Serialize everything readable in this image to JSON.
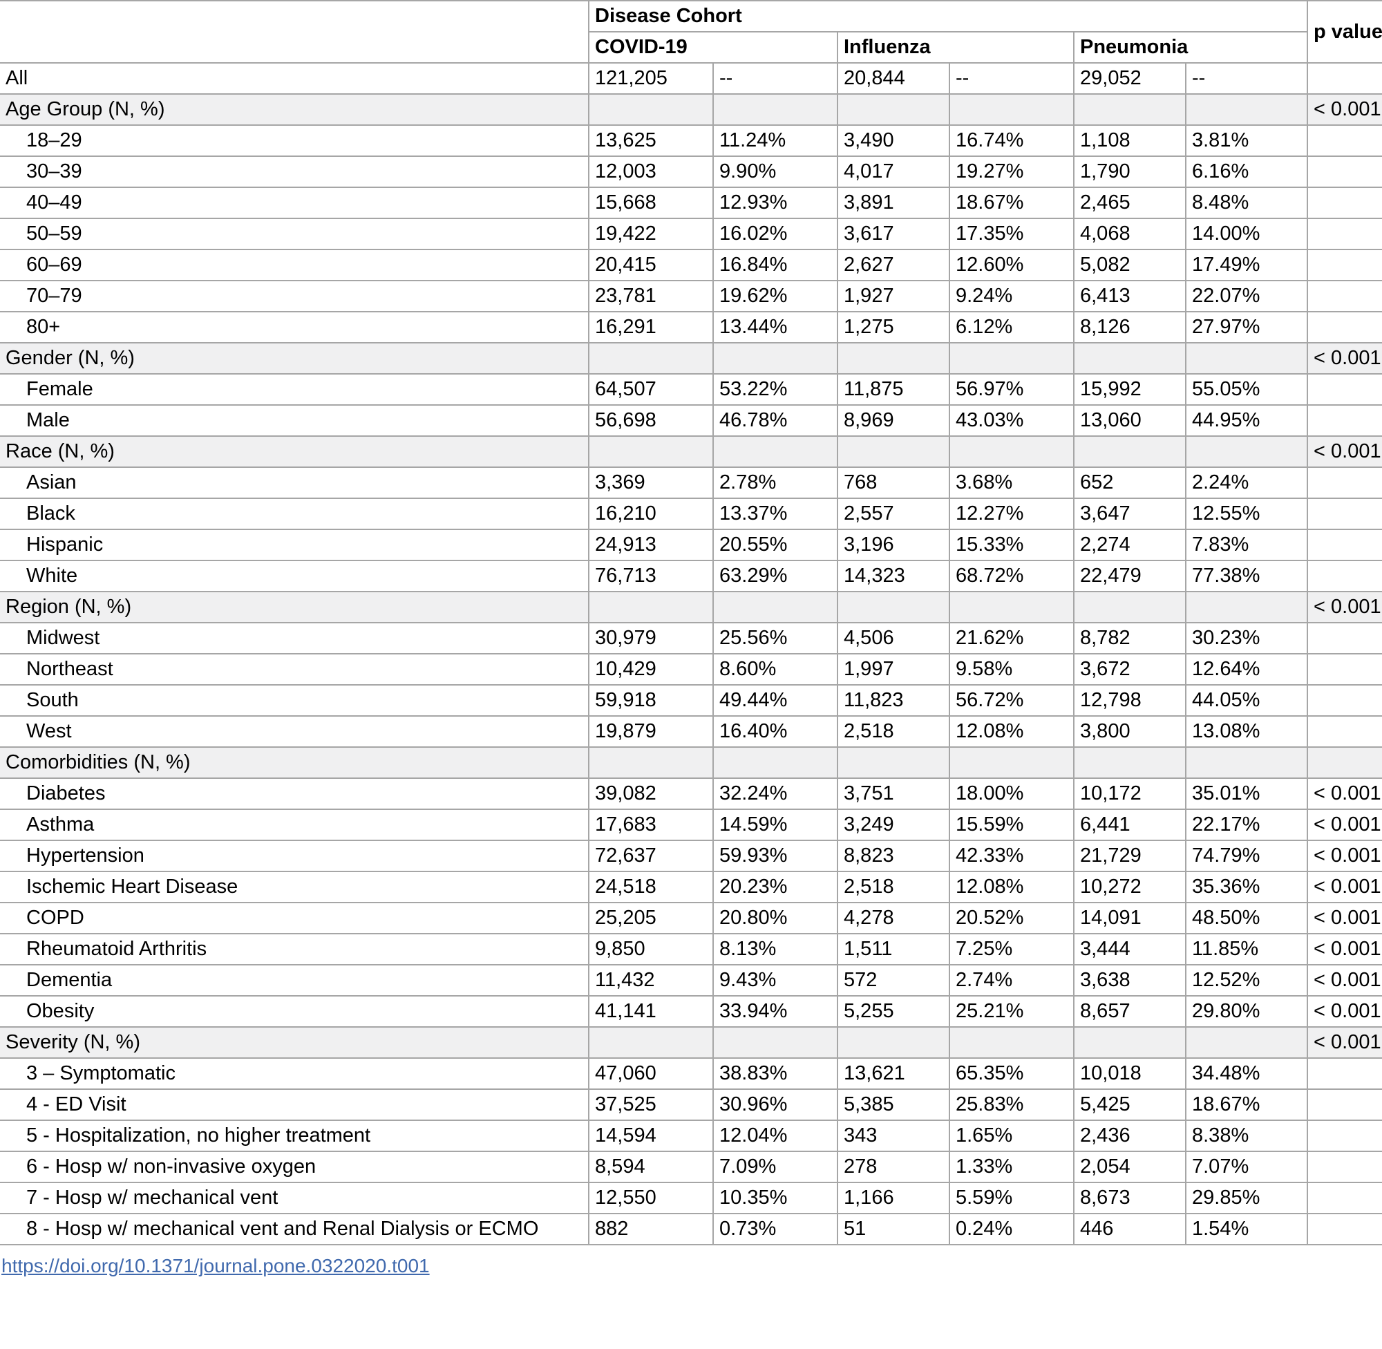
{
  "table": {
    "header": {
      "group_label": "Disease Cohort",
      "p_value_label": "p value",
      "cohorts": [
        "COVID-19",
        "Influenza",
        "Pneumonia"
      ]
    },
    "rows": [
      {
        "type": "data",
        "indent": false,
        "label": "All",
        "cells": [
          "121,205",
          "--",
          "20,844",
          "--",
          "29,052",
          "--"
        ],
        "p": ""
      },
      {
        "type": "section",
        "label": "Age Group (N, %)",
        "p": "< 0.001"
      },
      {
        "type": "data",
        "indent": true,
        "label": "18–29",
        "cells": [
          "13,625",
          "11.24%",
          "3,490",
          "16.74%",
          "1,108",
          "3.81%"
        ],
        "p": ""
      },
      {
        "type": "data",
        "indent": true,
        "label": "30–39",
        "cells": [
          "12,003",
          "9.90%",
          "4,017",
          "19.27%",
          "1,790",
          "6.16%"
        ],
        "p": ""
      },
      {
        "type": "data",
        "indent": true,
        "label": "40–49",
        "cells": [
          "15,668",
          "12.93%",
          "3,891",
          "18.67%",
          "2,465",
          "8.48%"
        ],
        "p": ""
      },
      {
        "type": "data",
        "indent": true,
        "label": "50–59",
        "cells": [
          "19,422",
          "16.02%",
          "3,617",
          "17.35%",
          "4,068",
          "14.00%"
        ],
        "p": ""
      },
      {
        "type": "data",
        "indent": true,
        "label": "60–69",
        "cells": [
          "20,415",
          "16.84%",
          "2,627",
          "12.60%",
          "5,082",
          "17.49%"
        ],
        "p": ""
      },
      {
        "type": "data",
        "indent": true,
        "label": "70–79",
        "cells": [
          "23,781",
          "19.62%",
          "1,927",
          "9.24%",
          "6,413",
          "22.07%"
        ],
        "p": ""
      },
      {
        "type": "data",
        "indent": true,
        "label": "80+",
        "cells": [
          "16,291",
          "13.44%",
          "1,275",
          "6.12%",
          "8,126",
          "27.97%"
        ],
        "p": ""
      },
      {
        "type": "section",
        "label": "Gender (N, %)",
        "p": "< 0.001"
      },
      {
        "type": "data",
        "indent": true,
        "label": "Female",
        "cells": [
          "64,507",
          "53.22%",
          "11,875",
          "56.97%",
          "15,992",
          "55.05%"
        ],
        "p": ""
      },
      {
        "type": "data",
        "indent": true,
        "label": "Male",
        "cells": [
          "56,698",
          "46.78%",
          "8,969",
          "43.03%",
          "13,060",
          "44.95%"
        ],
        "p": ""
      },
      {
        "type": "section",
        "label": "Race (N, %)",
        "p": "< 0.001"
      },
      {
        "type": "data",
        "indent": true,
        "label": "Asian",
        "cells": [
          "3,369",
          "2.78%",
          "768",
          "3.68%",
          "652",
          "2.24%"
        ],
        "p": ""
      },
      {
        "type": "data",
        "indent": true,
        "label": "Black",
        "cells": [
          "16,210",
          "13.37%",
          "2,557",
          "12.27%",
          "3,647",
          "12.55%"
        ],
        "p": ""
      },
      {
        "type": "data",
        "indent": true,
        "label": "Hispanic",
        "cells": [
          "24,913",
          "20.55%",
          "3,196",
          "15.33%",
          "2,274",
          "7.83%"
        ],
        "p": ""
      },
      {
        "type": "data",
        "indent": true,
        "label": "White",
        "cells": [
          "76,713",
          "63.29%",
          "14,323",
          "68.72%",
          "22,479",
          "77.38%"
        ],
        "p": ""
      },
      {
        "type": "section",
        "label": "Region (N, %)",
        "p": "< 0.001"
      },
      {
        "type": "data",
        "indent": true,
        "label": "Midwest",
        "cells": [
          "30,979",
          "25.56%",
          "4,506",
          "21.62%",
          "8,782",
          "30.23%"
        ],
        "p": ""
      },
      {
        "type": "data",
        "indent": true,
        "label": "Northeast",
        "cells": [
          "10,429",
          "8.60%",
          "1,997",
          "9.58%",
          "3,672",
          "12.64%"
        ],
        "p": ""
      },
      {
        "type": "data",
        "indent": true,
        "label": "South",
        "cells": [
          "59,918",
          "49.44%",
          "11,823",
          "56.72%",
          "12,798",
          "44.05%"
        ],
        "p": ""
      },
      {
        "type": "data",
        "indent": true,
        "label": "West",
        "cells": [
          "19,879",
          "16.40%",
          "2,518",
          "12.08%",
          "3,800",
          "13.08%"
        ],
        "p": ""
      },
      {
        "type": "section",
        "label": "Comorbidities (N, %)",
        "p": ""
      },
      {
        "type": "data",
        "indent": true,
        "label": "Diabetes",
        "cells": [
          "39,082",
          "32.24%",
          "3,751",
          "18.00%",
          "10,172",
          "35.01%"
        ],
        "p": "< 0.001"
      },
      {
        "type": "data",
        "indent": true,
        "label": "Asthma",
        "cells": [
          "17,683",
          "14.59%",
          "3,249",
          "15.59%",
          "6,441",
          "22.17%"
        ],
        "p": "< 0.001"
      },
      {
        "type": "data",
        "indent": true,
        "label": "Hypertension",
        "cells": [
          "72,637",
          "59.93%",
          "8,823",
          "42.33%",
          "21,729",
          "74.79%"
        ],
        "p": "< 0.001"
      },
      {
        "type": "data",
        "indent": true,
        "label": "Ischemic Heart Disease",
        "cells": [
          "24,518",
          "20.23%",
          "2,518",
          "12.08%",
          "10,272",
          "35.36%"
        ],
        "p": "< 0.001"
      },
      {
        "type": "data",
        "indent": true,
        "label": "COPD",
        "cells": [
          "25,205",
          "20.80%",
          "4,278",
          "20.52%",
          "14,091",
          "48.50%"
        ],
        "p": "< 0.001"
      },
      {
        "type": "data",
        "indent": true,
        "label": "Rheumatoid Arthritis",
        "cells": [
          "9,850",
          "8.13%",
          "1,511",
          "7.25%",
          "3,444",
          "11.85%"
        ],
        "p": "< 0.001"
      },
      {
        "type": "data",
        "indent": true,
        "label": "Dementia",
        "cells": [
          "11,432",
          "9.43%",
          "572",
          "2.74%",
          "3,638",
          "12.52%"
        ],
        "p": "< 0.001"
      },
      {
        "type": "data",
        "indent": true,
        "label": "Obesity",
        "cells": [
          "41,141",
          "33.94%",
          "5,255",
          "25.21%",
          "8,657",
          "29.80%"
        ],
        "p": "< 0.001"
      },
      {
        "type": "section",
        "label": "Severity (N, %)",
        "p": "< 0.001"
      },
      {
        "type": "data",
        "indent": true,
        "label": "3 – Symptomatic",
        "cells": [
          "47,060",
          "38.83%",
          "13,621",
          "65.35%",
          "10,018",
          "34.48%"
        ],
        "p": ""
      },
      {
        "type": "data",
        "indent": true,
        "label": "4 - ED Visit",
        "cells": [
          "37,525",
          "30.96%",
          "5,385",
          "25.83%",
          "5,425",
          "18.67%"
        ],
        "p": ""
      },
      {
        "type": "data",
        "indent": true,
        "label": "5 - Hospitalization, no higher treatment",
        "cells": [
          "14,594",
          "12.04%",
          "343",
          "1.65%",
          "2,436",
          "8.38%"
        ],
        "p": ""
      },
      {
        "type": "data",
        "indent": true,
        "label": "6 - Hosp w/ non-invasive oxygen",
        "cells": [
          "8,594",
          "7.09%",
          "278",
          "1.33%",
          "2,054",
          "7.07%"
        ],
        "p": ""
      },
      {
        "type": "data",
        "indent": true,
        "label": "7 - Hosp w/ mechanical vent",
        "cells": [
          "12,550",
          "10.35%",
          "1,166",
          "5.59%",
          "8,673",
          "29.85%"
        ],
        "p": ""
      },
      {
        "type": "data",
        "indent": true,
        "label": "8 - Hosp w/ mechanical vent and Renal Dialysis or ECMO",
        "cells": [
          "882",
          "0.73%",
          "51",
          "0.24%",
          "446",
          "1.54%"
        ],
        "p": ""
      }
    ],
    "footer": {
      "link_text": "https://doi.org/10.1371/journal.pone.0322020.t001"
    },
    "colors": {
      "section_row_background": "#f0f0f1",
      "border": "#a6a6a6",
      "link": "#4069ad"
    }
  }
}
